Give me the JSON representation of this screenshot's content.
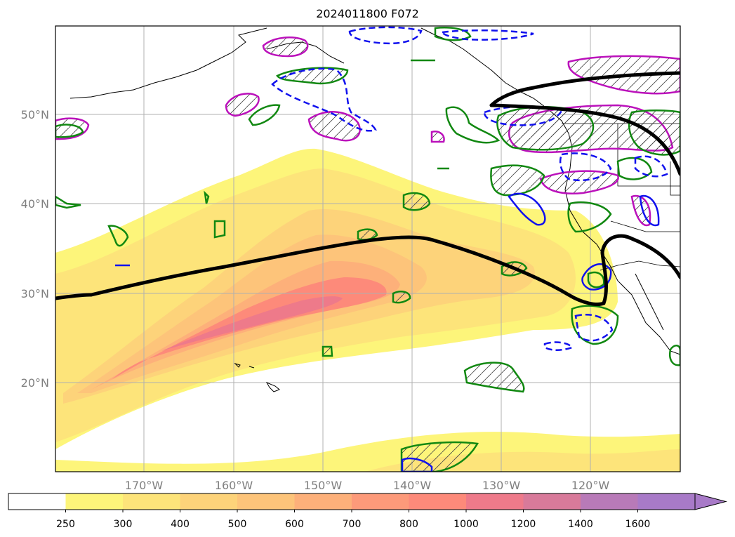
{
  "title": "2024011800 F072",
  "map": {
    "lat_labels": [
      "50°N",
      "40°N",
      "30°N",
      "20°N"
    ],
    "lon_labels": [
      "170°W",
      "160°W",
      "150°W",
      "140°W",
      "130°W",
      "120°W"
    ],
    "colors": {
      "gridline": "#b0b0b0",
      "coastline": "#000000",
      "jet": "#000000",
      "green_contour": "#118811",
      "blue_contour": "#1111ee",
      "magenta_contour": "#bb11bb"
    }
  },
  "colorbar": {
    "ticks": [
      "250",
      "300",
      "400",
      "500",
      "600",
      "700",
      "800",
      "1000",
      "1200",
      "1400",
      "1600"
    ],
    "colors": [
      "#ffffff",
      "#fdf57a",
      "#fde47a",
      "#fdd37a",
      "#fdc47a",
      "#fdb07a",
      "#fd9a7a",
      "#fd8a7a",
      "#ee7a8a",
      "#d87a9a",
      "#b87ab8",
      "#a87ac8"
    ],
    "extend": "max"
  }
}
